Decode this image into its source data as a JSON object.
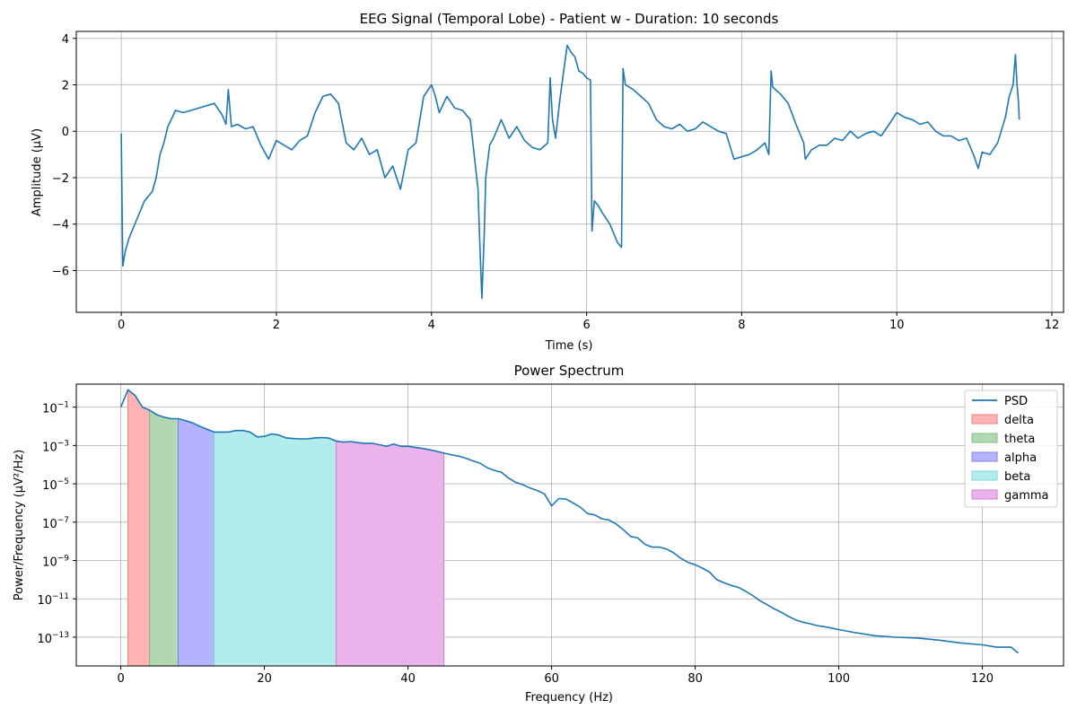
{
  "chart_data": [
    {
      "type": "line",
      "title": "EEG Signal (Temporal Lobe) - Patient w - Duration: 10 seconds",
      "xlabel": "Time (s)",
      "ylabel": "Amplitude (µV)",
      "xlim": [
        -0.58,
        12.15
      ],
      "ylim": [
        -7.8,
        4.3
      ],
      "xticks": [
        0,
        2,
        4,
        6,
        8,
        10,
        12
      ],
      "yticks": [
        -6,
        -4,
        -2,
        0,
        2,
        4
      ],
      "xtick_labels": [
        "0",
        "2",
        "4",
        "6",
        "8",
        "10",
        "12"
      ],
      "ytick_labels": [
        "−6",
        "−4",
        "−2",
        "0",
        "2",
        "4"
      ],
      "grid": true,
      "color": "#1f77b4",
      "series": [
        {
          "x": [
            0,
            0.02,
            0.05,
            0.1,
            0.2,
            0.3,
            0.4,
            0.45,
            0.5,
            0.55,
            0.6,
            0.7,
            0.8,
            0.9,
            1.0,
            1.1,
            1.2,
            1.3,
            1.35,
            1.38,
            1.42,
            1.5,
            1.6,
            1.7,
            1.8,
            1.9,
            2.0,
            2.1,
            2.2,
            2.3,
            2.4,
            2.5,
            2.6,
            2.7,
            2.8,
            2.9,
            3.0,
            3.1,
            3.2,
            3.3,
            3.4,
            3.5,
            3.6,
            3.7,
            3.8,
            3.9,
            4.0,
            4.05,
            4.1,
            4.2,
            4.3,
            4.4,
            4.5,
            4.55,
            4.6,
            4.62,
            4.65,
            4.68,
            4.7,
            4.75,
            4.8,
            4.9,
            5.0,
            5.1,
            5.2,
            5.3,
            5.4,
            5.5,
            5.53,
            5.56,
            5.6,
            5.65,
            5.7,
            5.75,
            5.8,
            5.85,
            5.9,
            5.95,
            6.0,
            6.05,
            6.07,
            6.1,
            6.15,
            6.2,
            6.3,
            6.4,
            6.45,
            6.47,
            6.5,
            6.55,
            6.6,
            6.7,
            6.8,
            6.9,
            7.0,
            7.1,
            7.2,
            7.3,
            7.4,
            7.5,
            7.6,
            7.7,
            7.8,
            7.9,
            8.0,
            8.1,
            8.2,
            8.3,
            8.35,
            8.38,
            8.4,
            8.5,
            8.6,
            8.7,
            8.8,
            8.82,
            8.9,
            9.0,
            9.1,
            9.2,
            9.3,
            9.4,
            9.5,
            9.6,
            9.7,
            9.8,
            9.9,
            10.0,
            10.1,
            10.2,
            10.3,
            10.4,
            10.5,
            10.6,
            10.7,
            10.8,
            10.9,
            11.0,
            11.05,
            11.1,
            11.2,
            11.3,
            11.4,
            11.45,
            11.5,
            11.53,
            11.55,
            11.57,
            11.58
          ],
          "y": [
            -0.1,
            -5.8,
            -5.2,
            -4.6,
            -3.8,
            -3.0,
            -2.6,
            -2.0,
            -1.0,
            -0.5,
            0.2,
            0.9,
            0.8,
            0.9,
            1.0,
            1.1,
            1.2,
            0.7,
            0.3,
            1.8,
            0.2,
            0.3,
            0.1,
            0.2,
            -0.6,
            -1.2,
            -0.4,
            -0.6,
            -0.8,
            -0.4,
            -0.2,
            0.8,
            1.5,
            1.6,
            1.2,
            -0.5,
            -0.8,
            -0.3,
            -1.0,
            -0.8,
            -2.0,
            -1.5,
            -2.5,
            -0.8,
            -0.5,
            1.5,
            2.0,
            1.5,
            0.8,
            1.5,
            1.0,
            0.9,
            0.5,
            -1.0,
            -2.5,
            -4.5,
            -7.2,
            -4.5,
            -2.0,
            -0.6,
            -0.3,
            0.5,
            -0.3,
            0.2,
            -0.4,
            -0.7,
            -0.8,
            -0.5,
            2.3,
            0.5,
            -0.3,
            1.2,
            2.5,
            3.7,
            3.4,
            3.2,
            2.6,
            2.5,
            2.3,
            2.2,
            -4.3,
            -3.0,
            -3.2,
            -3.5,
            -4.0,
            -4.8,
            -5.0,
            2.7,
            2.0,
            1.9,
            1.8,
            1.5,
            1.2,
            0.5,
            0.2,
            0.1,
            0.3,
            0.0,
            0.1,
            0.4,
            0.2,
            0.0,
            -0.1,
            -1.2,
            -1.1,
            -1.0,
            -0.8,
            -0.5,
            -1.0,
            2.6,
            1.9,
            1.6,
            1.2,
            0.3,
            -0.5,
            -1.2,
            -0.8,
            -0.6,
            -0.6,
            -0.3,
            -0.4,
            0.0,
            -0.3,
            -0.1,
            0.0,
            -0.2,
            0.3,
            0.8,
            0.6,
            0.5,
            0.3,
            0.4,
            0.0,
            -0.2,
            -0.2,
            -0.4,
            -0.3,
            -1.1,
            -1.6,
            -0.9,
            -1.0,
            -0.5,
            0.6,
            1.5,
            2.0,
            3.3,
            2.0,
            1.2,
            0.5
          ]
        }
      ]
    },
    {
      "type": "line",
      "title": "Power Spectrum",
      "xlabel": "Frequency (Hz)",
      "ylabel": "Power/Frequency (µV²/Hz)",
      "yscale": "log",
      "xlim": [
        -6.2,
        131.3
      ],
      "ylim_exponent": [
        -14.5,
        0.2
      ],
      "xticks": [
        0,
        20,
        40,
        60,
        80,
        100,
        120
      ],
      "yticks": [
        1e-13,
        1e-11,
        1e-09,
        1e-07,
        1e-05,
        0.001,
        0.1
      ],
      "xtick_labels": [
        "0",
        "20",
        "40",
        "60",
        "80",
        "100",
        "120"
      ],
      "ytick_labels": [
        {
          "base": "10",
          "exp": "−13"
        },
        {
          "base": "10",
          "exp": "−11"
        },
        {
          "base": "10",
          "exp": "−9"
        },
        {
          "base": "10",
          "exp": "−7"
        },
        {
          "base": "10",
          "exp": "−5"
        },
        {
          "base": "10",
          "exp": "−3"
        },
        {
          "base": "10",
          "exp": "−1"
        }
      ],
      "grid": true,
      "legend_position": "top-right",
      "series": [
        {
          "name": "PSD",
          "color": "#1f77b4",
          "x": [
            0,
            1,
            2,
            3,
            4,
            5,
            6,
            7,
            8,
            9,
            10,
            11,
            12,
            13,
            14,
            15,
            16,
            17,
            18,
            19,
            20,
            21,
            22,
            23,
            24,
            25,
            26,
            27,
            28,
            29,
            30,
            31,
            32,
            33,
            34,
            35,
            36,
            37,
            38,
            39,
            40,
            41,
            42,
            43,
            44,
            45,
            46,
            47,
            48,
            49,
            50,
            51,
            52,
            53,
            54,
            55,
            56,
            57,
            58,
            59,
            60,
            61,
            62,
            63,
            64,
            65,
            66,
            67,
            68,
            69,
            70,
            71,
            72,
            73,
            74,
            75,
            76,
            77,
            78,
            79,
            80,
            81,
            82,
            83,
            84,
            85,
            86,
            87,
            88,
            89,
            90,
            91,
            92,
            93,
            94,
            95,
            96,
            97,
            98,
            99,
            100,
            102,
            105,
            108,
            111,
            114,
            117,
            120,
            122,
            124,
            125
          ],
          "y": [
            0.1,
            0.8,
            0.4,
            0.1,
            0.07,
            0.04,
            0.03,
            0.025,
            0.025,
            0.02,
            0.015,
            0.01,
            0.007,
            0.005,
            0.005,
            0.005,
            0.006,
            0.006,
            0.005,
            0.0028,
            0.003,
            0.004,
            0.0035,
            0.0025,
            0.0023,
            0.0022,
            0.0022,
            0.0025,
            0.0026,
            0.0024,
            0.0017,
            0.0015,
            0.0016,
            0.0014,
            0.0013,
            0.0013,
            0.0011,
            0.0009,
            0.0012,
            0.0009,
            0.0009,
            0.0008,
            0.0007,
            0.0006,
            0.0005,
            0.0004,
            0.00033,
            0.00028,
            0.00022,
            0.00016,
            0.00012,
            7e-05,
            5e-05,
            4e-05,
            2e-05,
            1.2e-05,
            9e-06,
            6e-06,
            4.5e-06,
            3e-06,
            7e-07,
            1.7e-06,
            1.6e-06,
            1e-06,
            6e-07,
            2.8e-07,
            2.4e-07,
            1.5e-07,
            1.3e-07,
            8e-08,
            4e-08,
            1.8e-08,
            1.5e-08,
            7e-09,
            5e-09,
            5e-09,
            4e-09,
            2.5e-09,
            1.3e-09,
            8e-10,
            6e-10,
            4e-10,
            2.5e-10,
            1e-10,
            7e-11,
            5e-11,
            4e-11,
            2.5e-11,
            1.5e-11,
            8e-12,
            5e-12,
            3e-12,
            2e-12,
            1.2e-12,
            8e-13,
            6e-13,
            5e-13,
            4e-13,
            3.5e-13,
            3e-13,
            2.5e-13,
            1.8e-13,
            1.2e-13,
            1e-13,
            9e-14,
            7e-14,
            5e-14,
            4e-14,
            3e-14,
            3e-14,
            1.5e-14
          ]
        }
      ],
      "bands": [
        {
          "name": "delta",
          "range": [
            1,
            4
          ],
          "fill": "#ffb3b3",
          "edge": "#f08080"
        },
        {
          "name": "theta",
          "range": [
            4,
            8
          ],
          "fill": "#b2d8b2",
          "edge": "#7fbf7f"
        },
        {
          "name": "alpha",
          "range": [
            8,
            13
          ],
          "fill": "#b3b3ff",
          "edge": "#8080f0"
        },
        {
          "name": "beta",
          "range": [
            13,
            30
          ],
          "fill": "#b3ecec",
          "edge": "#7fd6d6"
        },
        {
          "name": "gamma",
          "range": [
            30,
            45
          ],
          "fill": "#ebb3eb",
          "edge": "#d680d6"
        }
      ]
    }
  ]
}
